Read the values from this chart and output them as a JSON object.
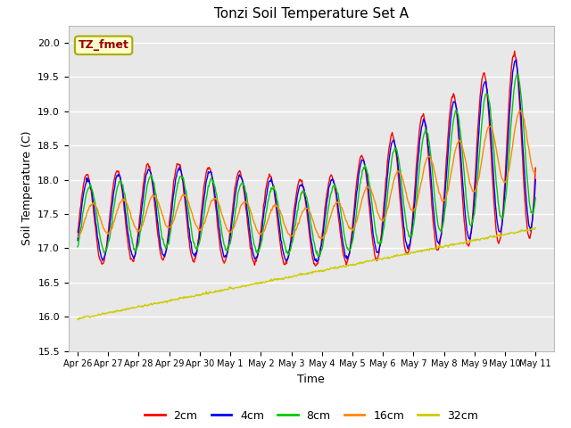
{
  "title": "Tonzi Soil Temperature Set A",
  "xlabel": "Time",
  "ylabel": "Soil Temperature (C)",
  "ylim": [
    15.5,
    20.25
  ],
  "annotation_text": "TZ_fmet",
  "annotation_bg": "#ffffcc",
  "annotation_border": "#aaaa00",
  "plot_bg": "#e8e8e8",
  "legend_labels": [
    "2cm",
    "4cm",
    "8cm",
    "16cm",
    "32cm"
  ],
  "legend_colors": [
    "#ff0000",
    "#0000ff",
    "#00cc00",
    "#ff8800",
    "#cccc00"
  ],
  "xtick_labels": [
    "Apr 26",
    "Apr 27",
    "Apr 28",
    "Apr 29",
    "Apr 30",
    "May 1",
    "May 2",
    "May 3",
    "May 4",
    "May 5",
    "May 6",
    "May 7",
    "May 8",
    "May 9",
    "May 10",
    "May 11"
  ],
  "grid_color": "#ffffff",
  "yticks": [
    15.5,
    16.0,
    16.5,
    17.0,
    17.5,
    18.0,
    18.5,
    19.0,
    19.5,
    20.0
  ]
}
